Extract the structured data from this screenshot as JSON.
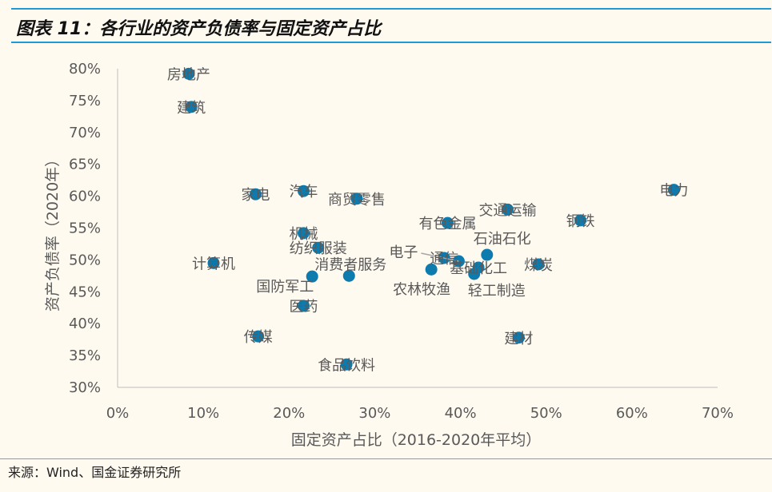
{
  "title": "图表 11：各行业的资产负债率与固定资产占比",
  "source": "来源：Wind、国金证券研究所",
  "colors": {
    "marker": "#0E7BAF",
    "label": "#595959",
    "title_rule": "#1E9BD7",
    "background": "#FFFAF0"
  },
  "chart_data": {
    "type": "scatter",
    "xlabel": "固定资产占比（2016-2020年平均）",
    "ylabel": "资产负债率（2020年）",
    "xlim": [
      0,
      70
    ],
    "ylim": [
      30,
      80
    ],
    "x_ticks": [
      "0%",
      "10%",
      "20%",
      "30%",
      "40%",
      "50%",
      "60%",
      "70%"
    ],
    "y_ticks": [
      "30%",
      "35%",
      "40%",
      "45%",
      "50%",
      "55%",
      "60%",
      "65%",
      "70%",
      "75%",
      "80%"
    ],
    "grid": false,
    "points": [
      {
        "label": "房地产",
        "x": 8.3,
        "y": 79.2
      },
      {
        "label": "建筑",
        "x": 8.6,
        "y": 74.0
      },
      {
        "label": "家电",
        "x": 16.1,
        "y": 60.3
      },
      {
        "label": "汽车",
        "x": 21.7,
        "y": 60.8
      },
      {
        "label": "商贸零售",
        "x": 27.9,
        "y": 59.6
      },
      {
        "label": "交通运输",
        "x": 45.5,
        "y": 57.9
      },
      {
        "label": "有色金属",
        "x": 38.5,
        "y": 55.8
      },
      {
        "label": "钢铁",
        "x": 54.0,
        "y": 56.2
      },
      {
        "label": "电力",
        "x": 64.9,
        "y": 61.0
      },
      {
        "label": "机械",
        "x": 21.7,
        "y": 54.2
      },
      {
        "label": "纺织服装",
        "x": 23.4,
        "y": 51.9
      },
      {
        "label": "石油石化",
        "x": 43.1,
        "y": 50.8
      },
      {
        "label": "电子",
        "x": 39.8,
        "y": 49.8
      },
      {
        "label": "通信",
        "x": 38.1,
        "y": 50.3
      },
      {
        "label": "基础化工",
        "x": 42.1,
        "y": 48.8
      },
      {
        "label": "轻工制造",
        "x": 41.6,
        "y": 47.8
      },
      {
        "label": "煤炭",
        "x": 49.1,
        "y": 49.3
      },
      {
        "label": "农林牧渔",
        "x": 36.6,
        "y": 48.5
      },
      {
        "label": "消费者服务",
        "x": 27.0,
        "y": 47.5
      },
      {
        "label": "国防军工",
        "x": 22.7,
        "y": 47.4
      },
      {
        "label": "计算机",
        "x": 11.2,
        "y": 49.5
      },
      {
        "label": "医药",
        "x": 21.7,
        "y": 42.8
      },
      {
        "label": "传媒",
        "x": 16.4,
        "y": 38.0
      },
      {
        "label": "建材",
        "x": 46.8,
        "y": 37.8
      },
      {
        "label": "食品饮料",
        "x": 26.7,
        "y": 33.6
      }
    ]
  }
}
